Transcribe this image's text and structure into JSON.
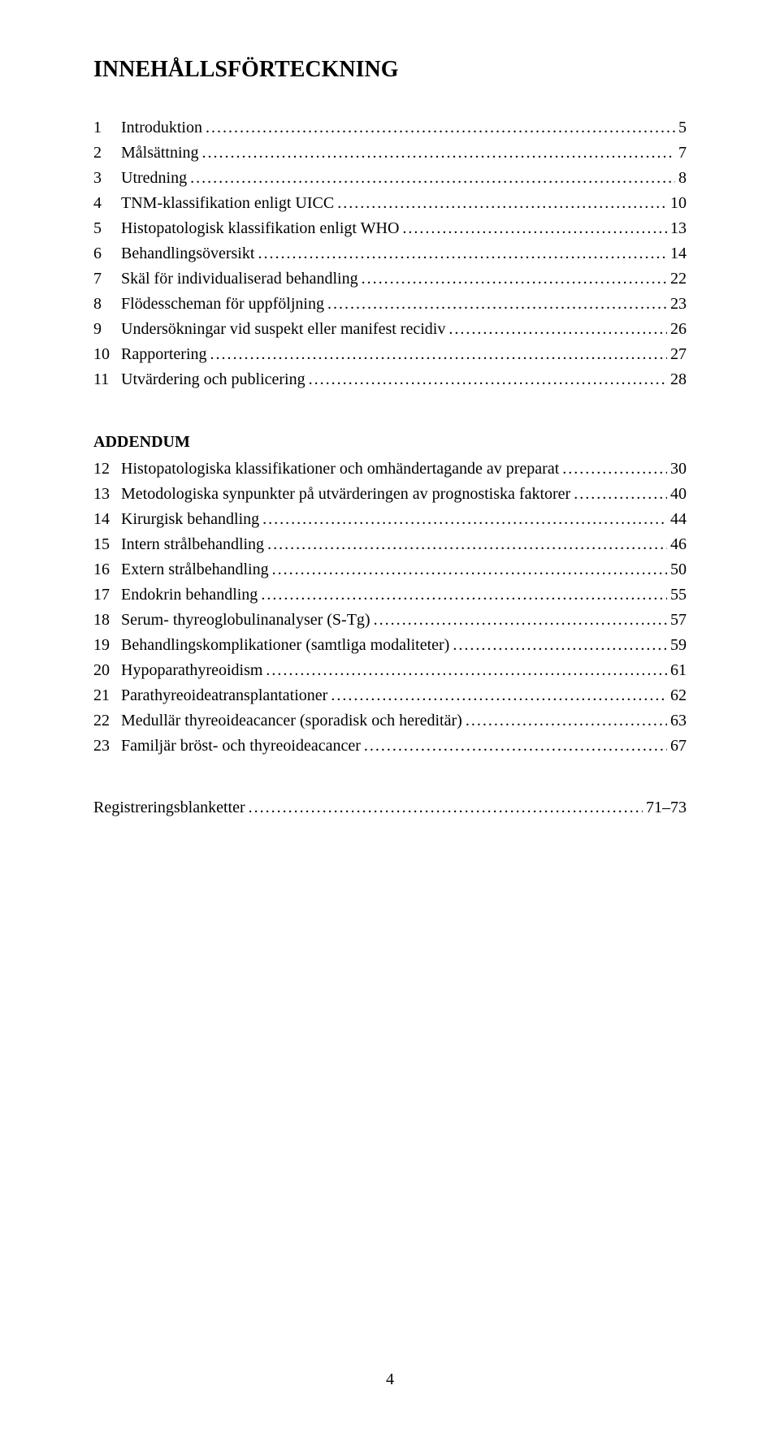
{
  "title": "INNEHÅLLSFÖRTECKNING",
  "addendum_heading": "ADDENDUM",
  "page_number": "4",
  "colors": {
    "background": "#ffffff",
    "text": "#000000"
  },
  "typography": {
    "title_fontsize_pt": 18,
    "body_fontsize_pt": 13,
    "font_family": "Times New Roman"
  },
  "section1": [
    {
      "num": "1",
      "label": "Introduktion",
      "page": "5"
    },
    {
      "num": "2",
      "label": "Målsättning",
      "page": "7"
    },
    {
      "num": "3",
      "label": "Utredning",
      "page": "8"
    },
    {
      "num": "4",
      "label": "TNM-klassifikation enligt UICC",
      "page": "10"
    },
    {
      "num": "5",
      "label": "Histopatologisk klassifikation enligt WHO",
      "page": "13"
    },
    {
      "num": "6",
      "label": "Behandlingsöversikt",
      "page": "14"
    },
    {
      "num": "7",
      "label": "Skäl för individualiserad behandling",
      "page": "22"
    },
    {
      "num": "8",
      "label": "Flödesscheman för uppföljning",
      "page": "23"
    },
    {
      "num": "9",
      "label": "Undersökningar vid suspekt eller manifest recidiv",
      "page": "26"
    },
    {
      "num": "10",
      "label": "Rapportering",
      "page": "27"
    },
    {
      "num": "11",
      "label": "Utvärdering och publicering",
      "page": "28"
    }
  ],
  "section2": [
    {
      "num": "12",
      "label": "Histopatologiska klassifikationer och omhändertagande av preparat",
      "page": "30"
    },
    {
      "num": "13",
      "label": "Metodologiska synpunkter på utvärderingen av prognostiska faktorer",
      "page": "40"
    },
    {
      "num": "14",
      "label": "Kirurgisk behandling",
      "page": "44"
    },
    {
      "num": "15",
      "label": "Intern strålbehandling",
      "page": "46"
    },
    {
      "num": "16",
      "label": "Extern strålbehandling",
      "page": "50"
    },
    {
      "num": "17",
      "label": "Endokrin behandling",
      "page": "55"
    },
    {
      "num": "18",
      "label": "Serum- thyreoglobulinanalyser (S-Tg)",
      "page": "57"
    },
    {
      "num": "19",
      "label": "Behandlingskomplikationer (samtliga modaliteter)",
      "page": "59"
    },
    {
      "num": "20",
      "label": "Hypoparathyreoidism",
      "page": "61"
    },
    {
      "num": "21",
      "label": "Parathyreoideatransplantationer",
      "page": "62"
    },
    {
      "num": "22",
      "label": "Medullär thyreoideacancer (sporadisk och hereditär)",
      "page": "63"
    },
    {
      "num": "23",
      "label": "Familjär bröst- och thyreoideacancer",
      "page": "67"
    }
  ],
  "footer_entry": {
    "label": "Registreringsblanketter",
    "page": "71–73"
  }
}
